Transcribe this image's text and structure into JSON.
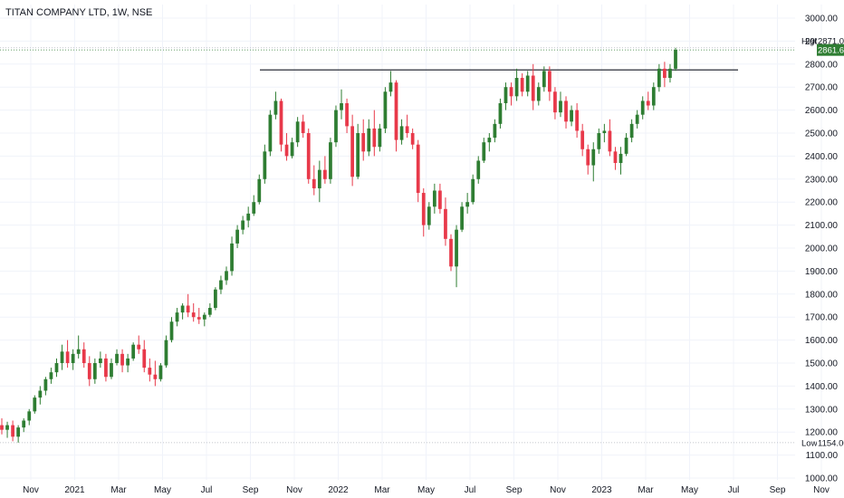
{
  "header": {
    "title": "TITAN COMPANY LTD, 1W, NSE"
  },
  "colors": {
    "up": "#2e7d32",
    "down": "#e8394a",
    "grid": "#f0f3fa",
    "resistance": "#131722",
    "price_tag": "#2e7d32"
  },
  "chart_data": {
    "type": "candlestick",
    "title": "TITAN COMPANY LTD, 1W, NSE",
    "ylim": [
      1000,
      3000
    ],
    "y_ticks": [
      "3000.00",
      "2900.00",
      "2800.00",
      "2700.00",
      "2600.00",
      "2500.00",
      "2400.00",
      "2300.00",
      "2200.00",
      "2100.00",
      "2000.00",
      "1900.00",
      "1800.00",
      "1700.00",
      "1600.00",
      "1500.00",
      "1400.00",
      "1300.00",
      "1200.00",
      "1100.00",
      "1000.00"
    ],
    "x_ticks": [
      "Nov",
      "2021",
      "Mar",
      "May",
      "Jul",
      "Sep",
      "Nov",
      "2022",
      "Mar",
      "May",
      "Jul",
      "Sep",
      "Nov",
      "2023",
      "Mar",
      "May",
      "Jul",
      "Sep",
      "Nov"
    ],
    "grid": true,
    "high": {
      "label": "High",
      "value": "2871.00"
    },
    "low": {
      "label": "Low",
      "value": "1154.00"
    },
    "last_price": "2861.65",
    "resistance_level": 2775,
    "candles": [
      [
        1230,
        1260,
        1190,
        1210
      ],
      [
        1210,
        1245,
        1175,
        1230
      ],
      [
        1230,
        1250,
        1160,
        1180
      ],
      [
        1180,
        1230,
        1154,
        1220
      ],
      [
        1220,
        1260,
        1200,
        1250
      ],
      [
        1250,
        1300,
        1230,
        1290
      ],
      [
        1290,
        1360,
        1280,
        1350
      ],
      [
        1350,
        1400,
        1320,
        1380
      ],
      [
        1380,
        1440,
        1360,
        1430
      ],
      [
        1430,
        1480,
        1410,
        1460
      ],
      [
        1460,
        1520,
        1440,
        1500
      ],
      [
        1500,
        1580,
        1470,
        1550
      ],
      [
        1550,
        1600,
        1480,
        1500
      ],
      [
        1500,
        1560,
        1470,
        1540
      ],
      [
        1540,
        1620,
        1520,
        1560
      ],
      [
        1560,
        1590,
        1480,
        1500
      ],
      [
        1500,
        1530,
        1400,
        1430
      ],
      [
        1430,
        1520,
        1410,
        1500
      ],
      [
        1500,
        1550,
        1480,
        1520
      ],
      [
        1520,
        1540,
        1420,
        1440
      ],
      [
        1440,
        1520,
        1430,
        1500
      ],
      [
        1500,
        1560,
        1490,
        1540
      ],
      [
        1540,
        1560,
        1460,
        1490
      ],
      [
        1490,
        1540,
        1460,
        1520
      ],
      [
        1520,
        1590,
        1510,
        1580
      ],
      [
        1580,
        1620,
        1540,
        1560
      ],
      [
        1560,
        1600,
        1460,
        1480
      ],
      [
        1480,
        1520,
        1420,
        1450
      ],
      [
        1450,
        1510,
        1400,
        1430
      ],
      [
        1430,
        1500,
        1420,
        1490
      ],
      [
        1490,
        1620,
        1480,
        1600
      ],
      [
        1600,
        1700,
        1590,
        1680
      ],
      [
        1680,
        1740,
        1660,
        1720
      ],
      [
        1720,
        1760,
        1690,
        1750
      ],
      [
        1750,
        1800,
        1700,
        1720
      ],
      [
        1720,
        1760,
        1680,
        1700
      ],
      [
        1700,
        1740,
        1670,
        1690
      ],
      [
        1690,
        1720,
        1660,
        1710
      ],
      [
        1710,
        1760,
        1700,
        1740
      ],
      [
        1740,
        1830,
        1730,
        1820
      ],
      [
        1820,
        1880,
        1800,
        1860
      ],
      [
        1860,
        1920,
        1840,
        1900
      ],
      [
        1900,
        2050,
        1880,
        2020
      ],
      [
        2020,
        2100,
        2000,
        2080
      ],
      [
        2080,
        2140,
        2060,
        2120
      ],
      [
        2120,
        2180,
        2090,
        2150
      ],
      [
        2150,
        2230,
        2140,
        2200
      ],
      [
        2200,
        2320,
        2190,
        2300
      ],
      [
        2300,
        2450,
        2280,
        2420
      ],
      [
        2420,
        2600,
        2400,
        2580
      ],
      [
        2580,
        2680,
        2560,
        2640
      ],
      [
        2640,
        2650,
        2420,
        2450
      ],
      [
        2450,
        2500,
        2380,
        2400
      ],
      [
        2400,
        2480,
        2390,
        2460
      ],
      [
        2460,
        2570,
        2440,
        2550
      ],
      [
        2550,
        2580,
        2480,
        2500
      ],
      [
        2500,
        2520,
        2280,
        2300
      ],
      [
        2300,
        2360,
        2230,
        2260
      ],
      [
        2260,
        2380,
        2200,
        2340
      ],
      [
        2340,
        2400,
        2280,
        2300
      ],
      [
        2300,
        2480,
        2280,
        2460
      ],
      [
        2460,
        2620,
        2440,
        2600
      ],
      [
        2600,
        2690,
        2560,
        2630
      ],
      [
        2630,
        2650,
        2500,
        2530
      ],
      [
        2530,
        2580,
        2270,
        2310
      ],
      [
        2310,
        2540,
        2300,
        2500
      ],
      [
        2500,
        2560,
        2380,
        2420
      ],
      [
        2420,
        2560,
        2400,
        2520
      ],
      [
        2520,
        2600,
        2400,
        2440
      ],
      [
        2440,
        2540,
        2420,
        2520
      ],
      [
        2520,
        2700,
        2500,
        2680
      ],
      [
        2680,
        2770,
        2660,
        2720
      ],
      [
        2720,
        2730,
        2420,
        2470
      ],
      [
        2470,
        2560,
        2450,
        2530
      ],
      [
        2530,
        2580,
        2480,
        2500
      ],
      [
        2500,
        2520,
        2430,
        2450
      ],
      [
        2450,
        2470,
        2200,
        2240
      ],
      [
        2240,
        2260,
        2050,
        2100
      ],
      [
        2100,
        2200,
        2080,
        2180
      ],
      [
        2180,
        2280,
        2150,
        2250
      ],
      [
        2250,
        2280,
        2150,
        2170
      ],
      [
        2170,
        2220,
        2010,
        2040
      ],
      [
        2040,
        2060,
        1900,
        1920
      ],
      [
        1920,
        2100,
        1830,
        2080
      ],
      [
        2080,
        2200,
        2070,
        2180
      ],
      [
        2180,
        2240,
        2150,
        2200
      ],
      [
        2200,
        2320,
        2190,
        2300
      ],
      [
        2300,
        2400,
        2280,
        2380
      ],
      [
        2380,
        2480,
        2370,
        2460
      ],
      [
        2460,
        2500,
        2420,
        2480
      ],
      [
        2480,
        2560,
        2460,
        2540
      ],
      [
        2540,
        2650,
        2520,
        2630
      ],
      [
        2630,
        2720,
        2600,
        2700
      ],
      [
        2700,
        2720,
        2620,
        2660
      ],
      [
        2660,
        2780,
        2640,
        2740
      ],
      [
        2740,
        2760,
        2660,
        2680
      ],
      [
        2680,
        2770,
        2660,
        2750
      ],
      [
        2750,
        2800,
        2600,
        2640
      ],
      [
        2640,
        2720,
        2620,
        2700
      ],
      [
        2700,
        2790,
        2680,
        2770
      ],
      [
        2770,
        2790,
        2640,
        2680
      ],
      [
        2680,
        2700,
        2560,
        2590
      ],
      [
        2590,
        2680,
        2570,
        2640
      ],
      [
        2640,
        2660,
        2520,
        2550
      ],
      [
        2550,
        2620,
        2530,
        2600
      ],
      [
        2600,
        2630,
        2480,
        2510
      ],
      [
        2510,
        2540,
        2400,
        2430
      ],
      [
        2430,
        2450,
        2320,
        2360
      ],
      [
        2360,
        2460,
        2290,
        2430
      ],
      [
        2430,
        2520,
        2410,
        2500
      ],
      [
        2500,
        2540,
        2460,
        2510
      ],
      [
        2510,
        2560,
        2400,
        2420
      ],
      [
        2420,
        2440,
        2340,
        2370
      ],
      [
        2370,
        2440,
        2320,
        2410
      ],
      [
        2410,
        2500,
        2400,
        2480
      ],
      [
        2480,
        2560,
        2460,
        2540
      ],
      [
        2540,
        2600,
        2520,
        2580
      ],
      [
        2580,
        2660,
        2560,
        2640
      ],
      [
        2640,
        2680,
        2600,
        2620
      ],
      [
        2620,
        2720,
        2600,
        2700
      ],
      [
        2700,
        2800,
        2680,
        2780
      ],
      [
        2780,
        2810,
        2700,
        2740
      ],
      [
        2740,
        2800,
        2720,
        2780
      ],
      [
        2780,
        2871,
        2770,
        2862
      ]
    ]
  }
}
